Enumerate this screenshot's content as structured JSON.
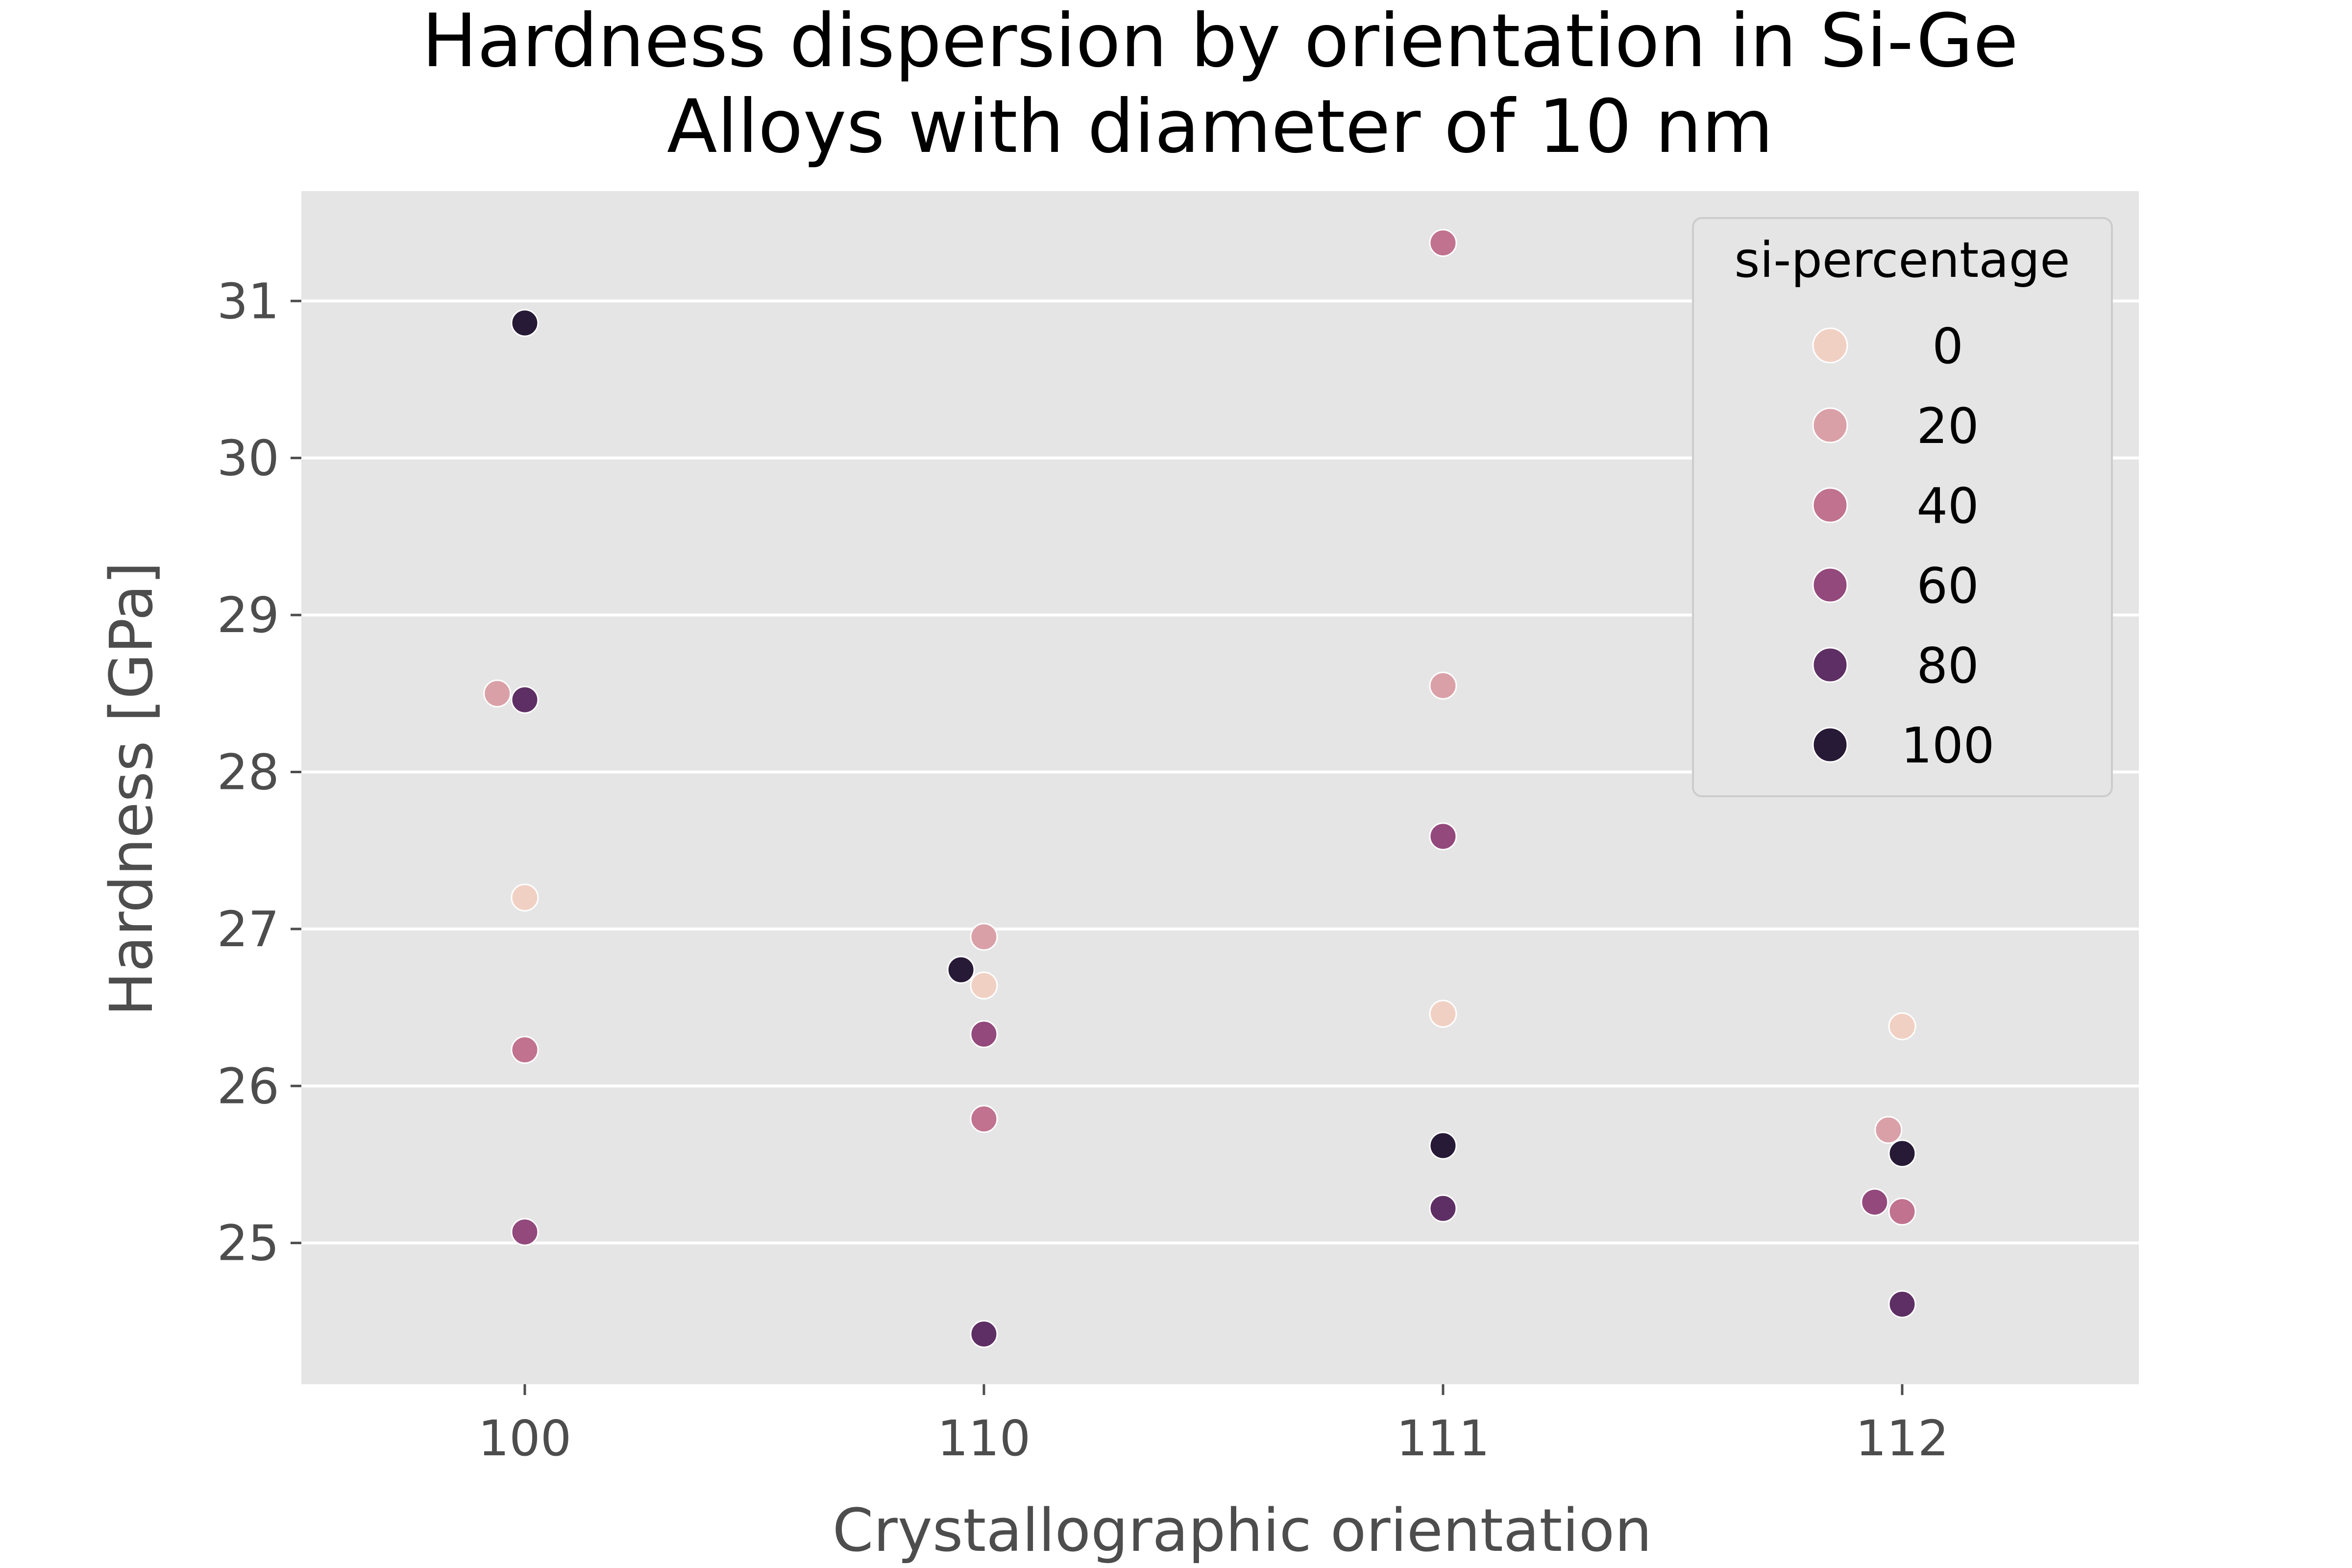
{
  "chart_data": {
    "type": "scatter",
    "title_lines": [
      "Hardness dispersion by orientation in Si-Ge",
      "Alloys with diameter of 10 nm"
    ],
    "xlabel": "Crystallographic orientation",
    "ylabel": "Hardness [GPa]",
    "categories": [
      "100",
      "110",
      "111",
      "112"
    ],
    "yticks": [
      "25",
      "26",
      "27",
      "28",
      "29",
      "30",
      "31"
    ],
    "ylim": [
      24.1,
      31.7
    ],
    "grid": true,
    "legend": {
      "title": "si-percentage",
      "placement": "top-right",
      "entries": [
        {
          "label": "0",
          "value": 0,
          "color": "#f1d0c4"
        },
        {
          "label": "20",
          "value": 20,
          "color": "#daa0a8"
        },
        {
          "label": "40",
          "value": 40,
          "color": "#c0728e"
        },
        {
          "label": "60",
          "value": 60,
          "color": "#93497c"
        },
        {
          "label": "80",
          "value": 80,
          "color": "#5e2f64"
        },
        {
          "label": "100",
          "value": 100,
          "color": "#271a36"
        }
      ]
    },
    "points": [
      {
        "x": "100",
        "jitter": 0.0,
        "si": 100,
        "y": 30.86
      },
      {
        "x": "100",
        "jitter": -0.06,
        "si": 20,
        "y": 28.5
      },
      {
        "x": "100",
        "jitter": 0.0,
        "si": 80,
        "y": 28.46
      },
      {
        "x": "100",
        "jitter": 0.0,
        "si": 0,
        "y": 27.2
      },
      {
        "x": "100",
        "jitter": 0.0,
        "si": 40,
        "y": 26.23
      },
      {
        "x": "100",
        "jitter": 0.0,
        "si": 60,
        "y": 25.07
      },
      {
        "x": "110",
        "jitter": 0.0,
        "si": 20,
        "y": 26.95
      },
      {
        "x": "110",
        "jitter": -0.05,
        "si": 100,
        "y": 26.74
      },
      {
        "x": "110",
        "jitter": 0.0,
        "si": 0,
        "y": 26.64
      },
      {
        "x": "110",
        "jitter": 0.0,
        "si": 60,
        "y": 26.33
      },
      {
        "x": "110",
        "jitter": 0.0,
        "si": 40,
        "y": 25.79
      },
      {
        "x": "110",
        "jitter": 0.0,
        "si": 80,
        "y": 24.42
      },
      {
        "x": "111",
        "jitter": 0.0,
        "si": 40,
        "y": 31.37
      },
      {
        "x": "111",
        "jitter": 0.0,
        "si": 20,
        "y": 28.55
      },
      {
        "x": "111",
        "jitter": 0.0,
        "si": 60,
        "y": 27.59
      },
      {
        "x": "111",
        "jitter": 0.0,
        "si": 0,
        "y": 26.46
      },
      {
        "x": "111",
        "jitter": 0.0,
        "si": 100,
        "y": 25.62
      },
      {
        "x": "111",
        "jitter": 0.0,
        "si": 80,
        "y": 25.22
      },
      {
        "x": "112",
        "jitter": 0.0,
        "si": 0,
        "y": 26.38
      },
      {
        "x": "112",
        "jitter": -0.03,
        "si": 20,
        "y": 25.72
      },
      {
        "x": "112",
        "jitter": 0.0,
        "si": 100,
        "y": 25.57
      },
      {
        "x": "112",
        "jitter": -0.06,
        "si": 60,
        "y": 25.26
      },
      {
        "x": "112",
        "jitter": 0.0,
        "si": 40,
        "y": 25.2
      },
      {
        "x": "112",
        "jitter": 0.0,
        "si": 80,
        "y": 24.61
      }
    ]
  }
}
